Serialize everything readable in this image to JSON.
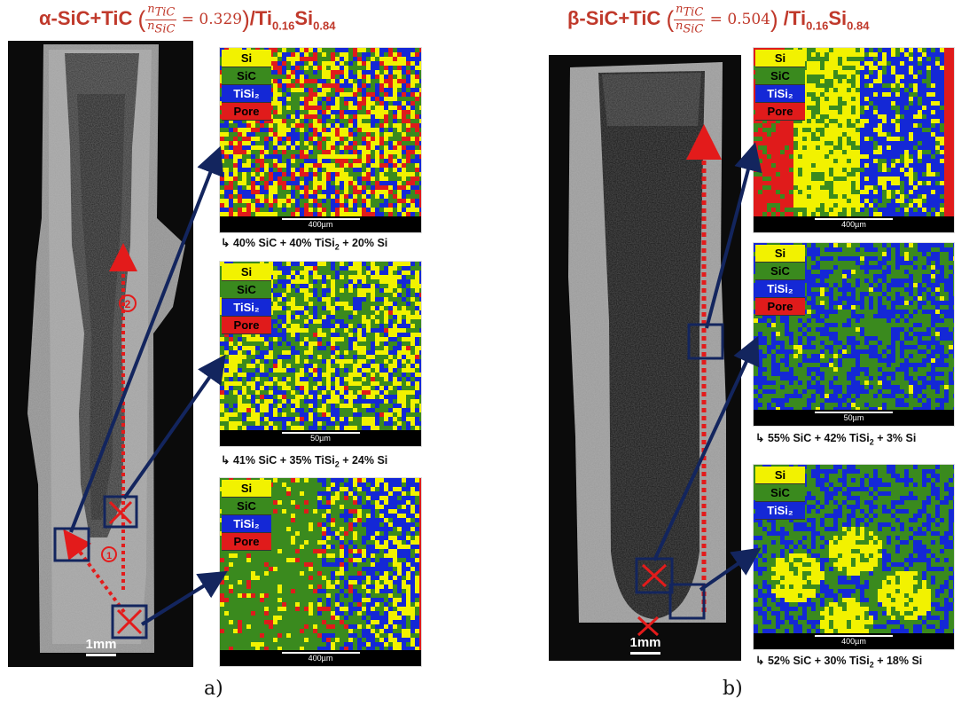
{
  "panel_a": {
    "title": {
      "prefix": "α-SiC+TiC ",
      "num": "n",
      "num_sub": "TiC",
      "den": "n",
      "den_sub": "SiC",
      "eq": " = 0.329",
      "suffix": "/Ti",
      "sub1": "0.16",
      "mid": "Si",
      "sub2": "0.84"
    },
    "sem_scale": "1mm",
    "markers": {
      "one": "①",
      "two": "②"
    },
    "label": "a)",
    "maps": [
      {
        "legend": [
          "Si",
          "SiC",
          "TiSi₂",
          "Pore"
        ],
        "scale": "400µm",
        "caption": "40% SiC + 40% TiSi₂ + 20% Si",
        "caption_parts": {
          "a": "40% SiC + 40% TiSi",
          "sub": "2",
          "b": " + 20% Si"
        }
      },
      {
        "legend": [
          "Si",
          "SiC",
          "TiSi₂",
          "Pore"
        ],
        "scale": "50µm",
        "caption": "41% SiC + 35% TiSi₂ + 24% Si",
        "caption_parts": {
          "a": "41% SiC + 35% TiSi",
          "sub": "2",
          "b": " + 24% Si"
        }
      },
      {
        "legend": [
          "Si",
          "SiC",
          "TiSi₂",
          "Pore"
        ],
        "scale": "400µm",
        "caption": ""
      }
    ]
  },
  "panel_b": {
    "title": {
      "prefix": "β-SiC+TiC ",
      "num": "n",
      "num_sub": "TiC",
      "den": "n",
      "den_sub": "SiC",
      "eq": " = 0.504",
      "suffix": " /Ti",
      "sub1": "0.16",
      "mid": "Si",
      "sub2": "0.84"
    },
    "sem_scale": "1mm",
    "label": "b)",
    "maps": [
      {
        "legend": [
          "Si",
          "SiC",
          "TiSi₂",
          "Pore"
        ],
        "scale": "400µm",
        "caption": ""
      },
      {
        "legend": [
          "Si",
          "SiC",
          "TiSi₂",
          "Pore"
        ],
        "scale": "50µm",
        "caption": "55% SiC + 42% TiSi₂ + 3% Si",
        "caption_parts": {
          "a": "55% SiC + 42% TiSi",
          "sub": "2",
          "b": " + 3% Si"
        }
      },
      {
        "legend": [
          "Si",
          "SiC",
          "TiSi₂"
        ],
        "scale": "400µm",
        "caption": "52% SiC + 30% TiSi₂ + 18% Si",
        "caption_parts": {
          "a": "52% SiC + 30% TiSi",
          "sub": "2",
          "b": " + 18% Si"
        }
      }
    ]
  },
  "colors": {
    "si": "#f2f200",
    "sic": "#3a8a1e",
    "tisi2": "#1428d6",
    "pore": "#e01b1b",
    "title": "#c0392b",
    "arrow": "#13255e",
    "path": "#e31b1b"
  }
}
